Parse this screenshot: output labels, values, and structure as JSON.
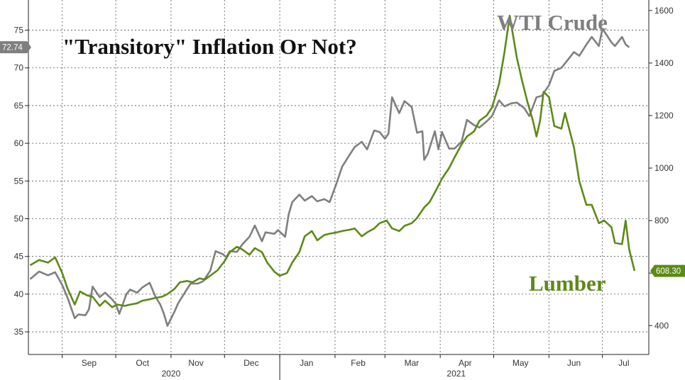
{
  "chart_data": {
    "type": "line",
    "title": "\"Transitory\" Inflation Or Not?",
    "x_month_labels": [
      "Sep",
      "Oct",
      "Nov",
      "Dec",
      "Jan",
      "Feb",
      "Mar",
      "Apr",
      "May",
      "Jun",
      "Jul"
    ],
    "x_year_labels": [
      "2020",
      "2021"
    ],
    "left_axis": {
      "ylim": [
        32,
        79
      ],
      "ticks": [
        "35",
        "40",
        "45",
        "50",
        "55",
        "60",
        "65",
        "70",
        "75"
      ]
    },
    "right_axis": {
      "ylim": [
        290,
        1640
      ],
      "ticks": [
        "400",
        "600",
        "800",
        "1000",
        "1200",
        "1400",
        "1600"
      ]
    },
    "grid": true,
    "series": [
      {
        "name": "WTI Crude",
        "axis": "left",
        "color": "#7f7f7f",
        "last_value_label": "72.74",
        "points": [
          [
            "2020-08-14",
            42.0
          ],
          [
            "2020-08-19",
            43.0
          ],
          [
            "2020-08-24",
            42.5
          ],
          [
            "2020-08-28",
            42.9
          ],
          [
            "2020-09-01",
            41.2
          ],
          [
            "2020-09-04",
            39.5
          ],
          [
            "2020-09-08",
            36.8
          ],
          [
            "2020-09-10",
            37.3
          ],
          [
            "2020-09-14",
            37.2
          ],
          [
            "2020-09-16",
            38.0
          ],
          [
            "2020-09-18",
            41.0
          ],
          [
            "2020-09-22",
            39.6
          ],
          [
            "2020-09-25",
            40.2
          ],
          [
            "2020-09-29",
            39.3
          ],
          [
            "2020-10-01",
            38.7
          ],
          [
            "2020-10-03",
            37.4
          ],
          [
            "2020-10-07",
            40.0
          ],
          [
            "2020-10-09",
            40.6
          ],
          [
            "2020-10-13",
            40.2
          ],
          [
            "2020-10-16",
            40.9
          ],
          [
            "2020-10-20",
            41.5
          ],
          [
            "2020-10-23",
            39.8
          ],
          [
            "2020-10-26",
            38.6
          ],
          [
            "2020-10-28",
            37.4
          ],
          [
            "2020-10-30",
            35.8
          ],
          [
            "2020-11-03",
            37.7
          ],
          [
            "2020-11-05",
            38.8
          ],
          [
            "2020-11-09",
            40.3
          ],
          [
            "2020-11-12",
            41.4
          ],
          [
            "2020-11-16",
            41.4
          ],
          [
            "2020-11-19",
            41.7
          ],
          [
            "2020-11-23",
            43.1
          ],
          [
            "2020-11-26",
            45.7
          ],
          [
            "2020-11-30",
            45.3
          ],
          [
            "2020-12-02",
            44.9
          ],
          [
            "2020-12-04",
            45.7
          ],
          [
            "2020-12-08",
            45.6
          ],
          [
            "2020-12-11",
            46.6
          ],
          [
            "2020-12-15",
            47.6
          ],
          [
            "2020-12-18",
            49.1
          ],
          [
            "2020-12-22",
            47.0
          ],
          [
            "2020-12-24",
            48.2
          ],
          [
            "2020-12-29",
            48.0
          ],
          [
            "2020-12-31",
            48.5
          ],
          [
            "2021-01-04",
            47.6
          ],
          [
            "2021-01-06",
            50.6
          ],
          [
            "2021-01-08",
            52.2
          ],
          [
            "2021-01-12",
            53.2
          ],
          [
            "2021-01-15",
            52.4
          ],
          [
            "2021-01-19",
            53.0
          ],
          [
            "2021-01-22",
            52.3
          ],
          [
            "2021-01-26",
            52.6
          ],
          [
            "2021-01-29",
            52.2
          ],
          [
            "2021-02-02",
            54.8
          ],
          [
            "2021-02-05",
            56.9
          ],
          [
            "2021-02-09",
            58.4
          ],
          [
            "2021-02-12",
            59.5
          ],
          [
            "2021-02-16",
            60.2
          ],
          [
            "2021-02-19",
            59.2
          ],
          [
            "2021-02-23",
            61.7
          ],
          [
            "2021-02-26",
            61.5
          ],
          [
            "2021-03-01",
            60.6
          ],
          [
            "2021-03-03",
            61.3
          ],
          [
            "2021-03-05",
            66.1
          ],
          [
            "2021-03-09",
            64.0
          ],
          [
            "2021-03-12",
            65.6
          ],
          [
            "2021-03-16",
            64.8
          ],
          [
            "2021-03-19",
            61.4
          ],
          [
            "2021-03-22",
            61.6
          ],
          [
            "2021-03-23",
            57.8
          ],
          [
            "2021-03-25",
            58.6
          ],
          [
            "2021-03-29",
            61.6
          ],
          [
            "2021-03-31",
            59.2
          ],
          [
            "2021-04-02",
            61.5
          ],
          [
            "2021-04-06",
            59.3
          ],
          [
            "2021-04-09",
            59.3
          ],
          [
            "2021-04-13",
            60.2
          ],
          [
            "2021-04-16",
            63.1
          ],
          [
            "2021-04-20",
            62.4
          ],
          [
            "2021-04-23",
            62.1
          ],
          [
            "2021-04-27",
            62.9
          ],
          [
            "2021-04-30",
            63.6
          ],
          [
            "2021-05-04",
            65.7
          ],
          [
            "2021-05-07",
            64.9
          ],
          [
            "2021-05-11",
            65.3
          ],
          [
            "2021-05-14",
            65.4
          ],
          [
            "2021-05-18",
            64.7
          ],
          [
            "2021-05-21",
            63.6
          ],
          [
            "2021-05-25",
            66.1
          ],
          [
            "2021-05-28",
            66.3
          ],
          [
            "2021-06-01",
            67.7
          ],
          [
            "2021-06-04",
            69.6
          ],
          [
            "2021-06-08",
            70.0
          ],
          [
            "2021-06-11",
            70.9
          ],
          [
            "2021-06-15",
            72.1
          ],
          [
            "2021-06-18",
            71.6
          ],
          [
            "2021-06-22",
            73.1
          ],
          [
            "2021-06-25",
            74.1
          ],
          [
            "2021-06-29",
            72.9
          ],
          [
            "2021-07-01",
            75.2
          ],
          [
            "2021-07-06",
            73.4
          ],
          [
            "2021-07-08",
            72.9
          ],
          [
            "2021-07-12",
            74.1
          ],
          [
            "2021-07-14",
            73.1
          ],
          [
            "2021-07-16",
            72.74
          ]
        ]
      },
      {
        "name": "Lumber",
        "axis": "right",
        "color": "#5c8a17",
        "last_value_label": "608.30",
        "points": [
          [
            "2020-08-14",
            630
          ],
          [
            "2020-08-19",
            650
          ],
          [
            "2020-08-24",
            640
          ],
          [
            "2020-08-28",
            660
          ],
          [
            "2020-09-01",
            600
          ],
          [
            "2020-09-04",
            540
          ],
          [
            "2020-09-08",
            480
          ],
          [
            "2020-09-11",
            530
          ],
          [
            "2020-09-15",
            515
          ],
          [
            "2020-09-18",
            510
          ],
          [
            "2020-09-22",
            475
          ],
          [
            "2020-09-25",
            495
          ],
          [
            "2020-09-29",
            470
          ],
          [
            "2020-10-02",
            480
          ],
          [
            "2020-10-06",
            475
          ],
          [
            "2020-10-09",
            480
          ],
          [
            "2020-10-13",
            485
          ],
          [
            "2020-10-16",
            495
          ],
          [
            "2020-10-20",
            500
          ],
          [
            "2020-10-23",
            505
          ],
          [
            "2020-10-27",
            510
          ],
          [
            "2020-10-30",
            520
          ],
          [
            "2020-11-03",
            540
          ],
          [
            "2020-11-06",
            565
          ],
          [
            "2020-11-10",
            570
          ],
          [
            "2020-11-13",
            565
          ],
          [
            "2020-11-17",
            580
          ],
          [
            "2020-11-20",
            575
          ],
          [
            "2020-11-24",
            595
          ],
          [
            "2020-11-27",
            610
          ],
          [
            "2020-12-01",
            645
          ],
          [
            "2020-12-04",
            680
          ],
          [
            "2020-12-08",
            700
          ],
          [
            "2020-12-11",
            690
          ],
          [
            "2020-12-15",
            670
          ],
          [
            "2020-12-18",
            695
          ],
          [
            "2020-12-22",
            680
          ],
          [
            "2020-12-25",
            640
          ],
          [
            "2020-12-29",
            605
          ],
          [
            "2021-01-01",
            590
          ],
          [
            "2021-01-05",
            600
          ],
          [
            "2021-01-08",
            640
          ],
          [
            "2021-01-12",
            680
          ],
          [
            "2021-01-15",
            740
          ],
          [
            "2021-01-19",
            760
          ],
          [
            "2021-01-22",
            725
          ],
          [
            "2021-01-26",
            745
          ],
          [
            "2021-01-29",
            750
          ],
          [
            "2021-02-02",
            755
          ],
          [
            "2021-02-05",
            760
          ],
          [
            "2021-02-09",
            765
          ],
          [
            "2021-02-12",
            770
          ],
          [
            "2021-02-16",
            740
          ],
          [
            "2021-02-19",
            755
          ],
          [
            "2021-02-23",
            770
          ],
          [
            "2021-02-26",
            790
          ],
          [
            "2021-03-02",
            800
          ],
          [
            "2021-03-05",
            770
          ],
          [
            "2021-03-09",
            760
          ],
          [
            "2021-03-12",
            780
          ],
          [
            "2021-03-16",
            790
          ],
          [
            "2021-03-19",
            810
          ],
          [
            "2021-03-23",
            850
          ],
          [
            "2021-03-26",
            870
          ],
          [
            "2021-03-30",
            920
          ],
          [
            "2021-04-02",
            960
          ],
          [
            "2021-04-06",
            1000
          ],
          [
            "2021-04-09",
            1040
          ],
          [
            "2021-04-13",
            1090
          ],
          [
            "2021-04-16",
            1120
          ],
          [
            "2021-04-20",
            1140
          ],
          [
            "2021-04-23",
            1180
          ],
          [
            "2021-04-27",
            1200
          ],
          [
            "2021-04-30",
            1230
          ],
          [
            "2021-05-04",
            1320
          ],
          [
            "2021-05-07",
            1440
          ],
          [
            "2021-05-10",
            1580
          ],
          [
            "2021-05-12",
            1500
          ],
          [
            "2021-05-14",
            1420
          ],
          [
            "2021-05-17",
            1330
          ],
          [
            "2021-05-20",
            1250
          ],
          [
            "2021-05-23",
            1180
          ],
          [
            "2021-05-25",
            1120
          ],
          [
            "2021-05-27",
            1180
          ],
          [
            "2021-05-29",
            1290
          ],
          [
            "2021-06-01",
            1270
          ],
          [
            "2021-06-04",
            1160
          ],
          [
            "2021-06-08",
            1150
          ],
          [
            "2021-06-10",
            1210
          ],
          [
            "2021-06-15",
            1080
          ],
          [
            "2021-06-18",
            950
          ],
          [
            "2021-06-22",
            860
          ],
          [
            "2021-06-25",
            860
          ],
          [
            "2021-06-29",
            790
          ],
          [
            "2021-07-02",
            800
          ],
          [
            "2021-07-06",
            775
          ],
          [
            "2021-07-08",
            715
          ],
          [
            "2021-07-12",
            710
          ],
          [
            "2021-07-14",
            800
          ],
          [
            "2021-07-16",
            690
          ],
          [
            "2021-07-19",
            608.3
          ]
        ]
      }
    ]
  }
}
